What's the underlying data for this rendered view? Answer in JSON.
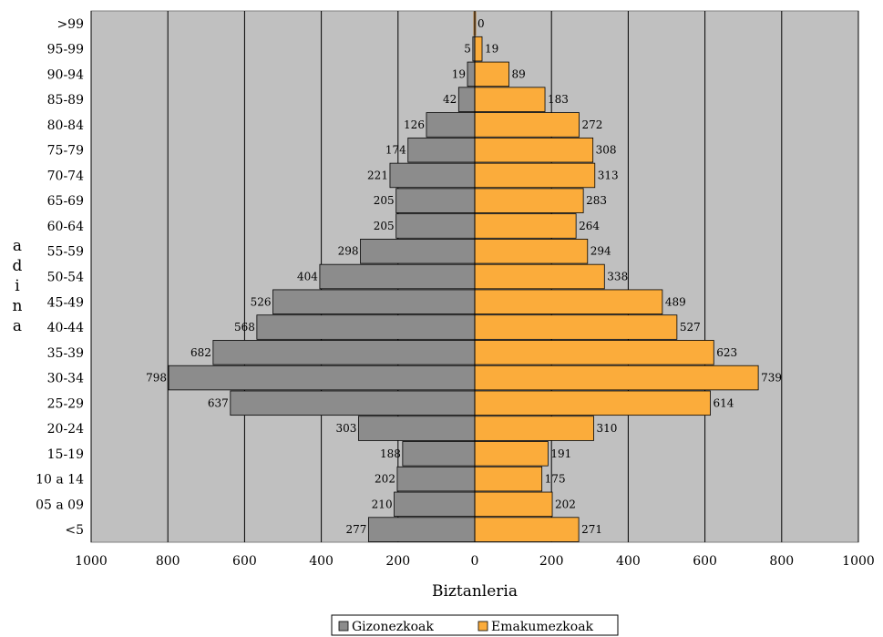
{
  "chart_data": {
    "type": "bar",
    "orientation": "horizontal",
    "layout": "population-pyramid",
    "categories": [
      ">99",
      "95-99",
      "90-94",
      "85-89",
      "80-84",
      "75-79",
      "70-74",
      "65-69",
      "60-64",
      "55-59",
      "50-54",
      "45-49",
      "40-44",
      "35-39",
      "30-34",
      "25-29",
      "20-24",
      "15-19",
      "10 a 14",
      "05 a 09",
      "<5"
    ],
    "series": [
      {
        "name": "Gizonezkoak",
        "side": "left",
        "color": "#8c8c8c",
        "values": [
          0,
          5,
          19,
          42,
          126,
          174,
          221,
          205,
          205,
          298,
          404,
          526,
          568,
          682,
          798,
          637,
          303,
          188,
          202,
          210,
          277
        ],
        "labels": [
          "",
          "5",
          "19",
          "42",
          "126",
          "174",
          "221",
          "205",
          "205",
          "298",
          "404",
          "526",
          "568",
          "682",
          "798",
          "637",
          "303",
          "188",
          "202",
          "210",
          "277"
        ]
      },
      {
        "name": "Emakumezkoak",
        "side": "right",
        "color": "#fbac3b",
        "values": [
          0,
          19,
          89,
          183,
          272,
          308,
          313,
          283,
          264,
          294,
          338,
          489,
          527,
          623,
          739,
          614,
          310,
          191,
          175,
          202,
          271
        ],
        "labels": [
          "0",
          "19",
          "89",
          "183",
          "272",
          "308",
          "313",
          "283",
          "264",
          "294",
          "338",
          "489",
          "527",
          "623",
          "739",
          "614",
          "310",
          "191",
          "175",
          "202",
          "271"
        ]
      }
    ],
    "xlabel": "Biztanleria",
    "ylabel": "adina",
    "xlim": [
      -1000,
      1000
    ],
    "xticks": [
      -1000,
      -800,
      -600,
      -400,
      -200,
      0,
      200,
      400,
      600,
      800,
      1000
    ],
    "xtick_labels": [
      "1000",
      "800",
      "600",
      "400",
      "200",
      "0",
      "200",
      "400",
      "600",
      "800",
      "1000"
    ],
    "grid": true,
    "plot_background": "#c0c0c0",
    "legend_position": "bottom-center"
  }
}
